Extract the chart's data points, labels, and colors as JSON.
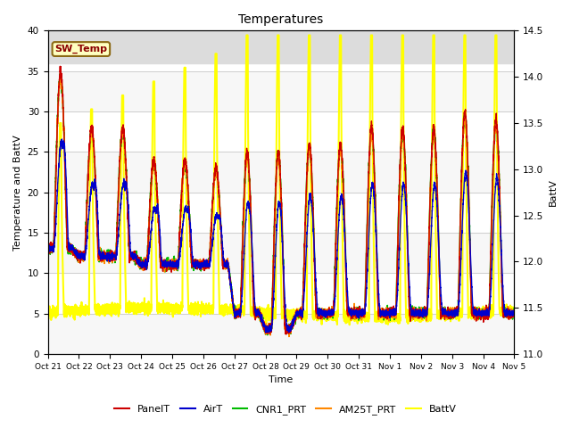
{
  "title": "Temperatures",
  "xlabel": "Time",
  "ylabel_left": "Temperature and BattV",
  "ylabel_right": "BattV",
  "xlim": [
    0,
    15
  ],
  "ylim_left": [
    0,
    40
  ],
  "ylim_right": [
    11.0,
    14.5
  ],
  "xtick_labels": [
    "Oct 21",
    "Oct 22",
    "Oct 23",
    "Oct 24",
    "Oct 25",
    "Oct 26",
    "Oct 27",
    "Oct 28",
    "Oct 29",
    "Oct 30",
    "Oct 31",
    "Nov 1",
    "Nov 2",
    "Nov 3",
    "Nov 4",
    "Nov 5"
  ],
  "annotation_text": "SW_Temp",
  "annotation_color": "#8B0000",
  "annotation_bg": "#FFFFC0",
  "annotation_edge": "#8B6914",
  "bg_shade_ymin": 36,
  "bg_shade_ymax": 40,
  "line_colors": {
    "PanelT": "#CC0000",
    "AirT": "#0000CC",
    "CNR1_PRT": "#00BB00",
    "AM25T_PRT": "#FF8800",
    "BattV": "#FFFF00"
  },
  "line_widths": {
    "PanelT": 1.0,
    "AirT": 1.0,
    "CNR1_PRT": 1.2,
    "AM25T_PRT": 1.2,
    "BattV": 1.5
  },
  "figsize": [
    6.4,
    4.8
  ],
  "dpi": 100
}
